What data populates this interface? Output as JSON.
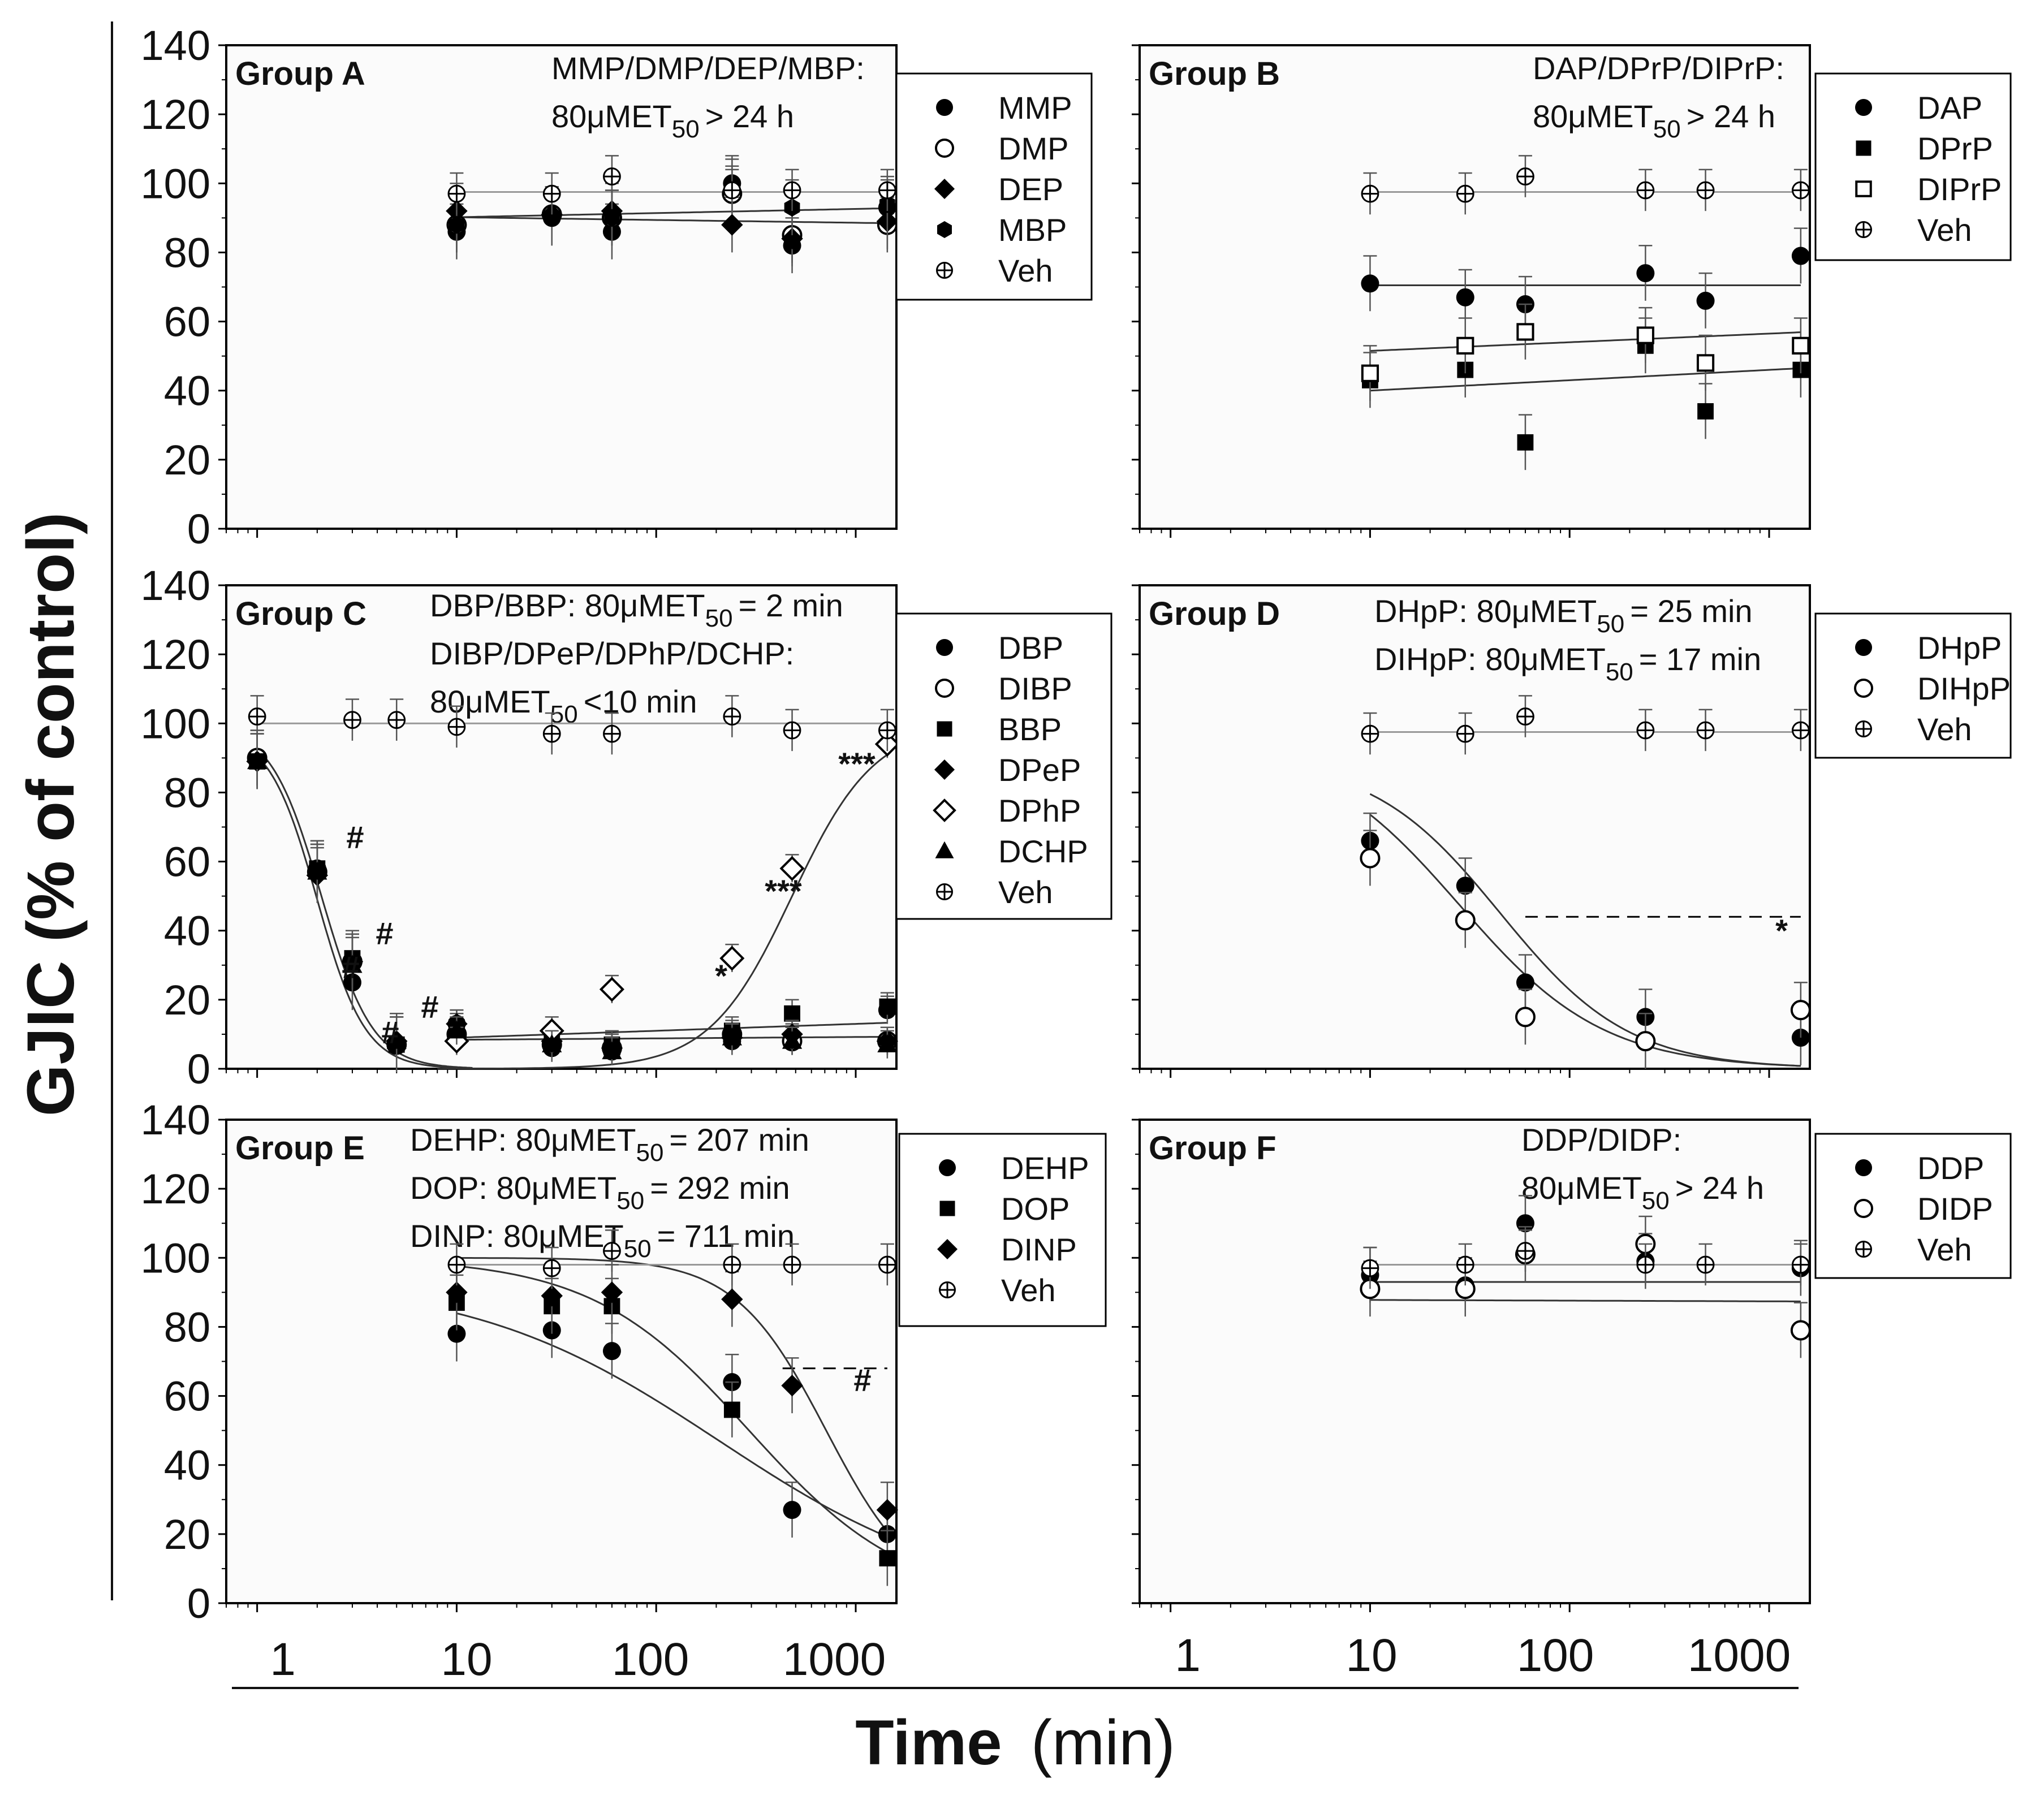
{
  "figure": {
    "ylabel": "GJIC (% of control)",
    "xlabel_bold": "Time",
    "xlabel_unit": "(min)",
    "x_ticks": [
      "1",
      "10",
      "100",
      "1000"
    ],
    "y_ticks": [
      "0",
      "20",
      "40",
      "60",
      "80",
      "100",
      "120",
      "140"
    ],
    "et50_symbol": "80μMET",
    "et50_sub": "50"
  },
  "chart_data": [
    {
      "id": "A",
      "type": "scatter",
      "title": "Group A",
      "xscale": "log",
      "xlim": [
        0.7,
        1600
      ],
      "ylim": [
        0,
        140
      ],
      "legend": "top-right",
      "annotations": [
        {
          "prefix": "MMP/DMP/DEP/MBP:",
          "suffix": "> 24 h"
        }
      ],
      "series": [
        {
          "name": "MMP",
          "marker": "circle-filled",
          "x": [
            10,
            30,
            60,
            240,
            480,
            1440
          ],
          "y": [
            86,
            90,
            86,
            100,
            82,
            93
          ]
        },
        {
          "name": "DMP",
          "marker": "circle-open",
          "x": [
            10,
            30,
            60,
            240,
            480,
            1440
          ],
          "y": [
            88,
            91,
            90,
            97,
            85,
            88
          ]
        },
        {
          "name": "DEP",
          "marker": "diamond-filled",
          "x": [
            10,
            30,
            60,
            240,
            480,
            1440
          ],
          "y": [
            92,
            91,
            92,
            88,
            84,
            89
          ]
        },
        {
          "name": "MBP",
          "marker": "hexagon-filled",
          "x": [
            10,
            30,
            60,
            240,
            480,
            1440
          ],
          "y": [
            88,
            90,
            90,
            99,
            93,
            94
          ]
        },
        {
          "name": "Veh",
          "marker": "crossed-circle",
          "x": [
            10,
            30,
            60,
            240,
            480,
            1440
          ],
          "y": [
            97,
            97,
            102,
            98,
            98,
            98
          ]
        }
      ]
    },
    {
      "id": "B",
      "type": "scatter",
      "title": "Group B",
      "xscale": "log",
      "xlim": [
        0.7,
        1600
      ],
      "ylim": [
        0,
        140
      ],
      "legend": "top-right",
      "annotations": [
        {
          "prefix": "DAP/DPrP/DIPrP:",
          "suffix": "> 24 h"
        }
      ],
      "series": [
        {
          "name": "DAP",
          "marker": "circle-filled",
          "x": [
            10,
            30,
            60,
            240,
            480,
            1440
          ],
          "y": [
            71,
            67,
            65,
            74,
            66,
            79
          ]
        },
        {
          "name": "DPrP",
          "marker": "square-filled",
          "x": [
            10,
            30,
            60,
            240,
            480,
            1440
          ],
          "y": [
            43,
            46,
            25,
            53,
            34,
            46
          ]
        },
        {
          "name": "DIPrP",
          "marker": "square-open",
          "x": [
            10,
            30,
            60,
            240,
            480,
            1440
          ],
          "y": [
            45,
            53,
            57,
            56,
            48,
            53
          ]
        },
        {
          "name": "Veh",
          "marker": "crossed-circle",
          "x": [
            10,
            30,
            60,
            240,
            480,
            1440
          ],
          "y": [
            97,
            97,
            102,
            98,
            98,
            98
          ]
        }
      ]
    },
    {
      "id": "C",
      "type": "scatter",
      "title": "Group C",
      "xscale": "log",
      "xlim": [
        0.7,
        1600
      ],
      "ylim": [
        0,
        140
      ],
      "legend": "top-right",
      "annotations": [
        {
          "prefix": "DBP/BBP:",
          "suffix": "= 2 min"
        },
        {
          "prefix": "DIBP/DPeP/DPhP/DCHP:",
          "suffix": ""
        },
        {
          "prefix": "",
          "suffix": "<10 min"
        }
      ],
      "significance": [
        "#",
        "#",
        "#",
        "#",
        "#",
        "*",
        "***",
        "***"
      ],
      "series": [
        {
          "name": "DBP",
          "marker": "circle-filled",
          "x": [
            1,
            2,
            3,
            5,
            10,
            30,
            60,
            240,
            480,
            1440
          ],
          "y": [
            90,
            58,
            25,
            7,
            13,
            6,
            5,
            8,
            9,
            17
          ]
        },
        {
          "name": "DIBP",
          "marker": "circle-open",
          "x": [
            1,
            2,
            3,
            5,
            10,
            30,
            60,
            240,
            480,
            1440
          ],
          "y": [
            90,
            57,
            31,
            7,
            10,
            7,
            6,
            10,
            8,
            8
          ]
        },
        {
          "name": "BBP",
          "marker": "square-filled",
          "x": [
            1,
            2,
            3,
            5,
            10,
            30,
            60,
            240,
            480,
            1440
          ],
          "y": [
            89,
            58,
            32,
            7,
            12,
            8,
            7,
            11,
            16,
            18
          ]
        },
        {
          "name": "DPeP",
          "marker": "diamond-filled",
          "x": [
            1,
            2,
            3,
            5,
            10,
            30,
            60,
            240,
            480,
            1440
          ],
          "y": [
            89,
            56,
            31,
            8,
            13,
            8,
            6,
            9,
            10,
            8
          ]
        },
        {
          "name": "DPhP",
          "marker": "diamond-open",
          "x": [
            10,
            30,
            60,
            240,
            480,
            1440
          ],
          "y": [
            8,
            11,
            23,
            32,
            58,
            94
          ]
        },
        {
          "name": "DCHP",
          "marker": "triangle-filled",
          "x": [
            1,
            2,
            3,
            5,
            10,
            30,
            60,
            240,
            480,
            1440
          ],
          "y": [
            89,
            57,
            30,
            8,
            11,
            7,
            5,
            9,
            8,
            7
          ]
        },
        {
          "name": "Veh",
          "marker": "crossed-circle",
          "x": [
            1,
            3,
            5,
            10,
            30,
            60,
            240,
            480,
            1440
          ],
          "y": [
            102,
            101,
            101,
            99,
            97,
            97,
            102,
            98,
            98
          ]
        }
      ]
    },
    {
      "id": "D",
      "type": "scatter",
      "title": "Group D",
      "xscale": "log",
      "xlim": [
        0.7,
        1600
      ],
      "ylim": [
        0,
        140
      ],
      "legend": "top-right",
      "annotations": [
        {
          "prefix": "DHpP:",
          "suffix": "= 25 min"
        },
        {
          "prefix": "DIHpP:",
          "suffix": "= 17 min"
        }
      ],
      "significance": [
        "*"
      ],
      "series": [
        {
          "name": "DHpP",
          "marker": "circle-filled",
          "x": [
            10,
            30,
            60,
            240,
            1440
          ],
          "y": [
            66,
            53,
            25,
            15,
            9
          ]
        },
        {
          "name": "DIHpP",
          "marker": "circle-open",
          "x": [
            10,
            30,
            60,
            240,
            1440
          ],
          "y": [
            61,
            43,
            15,
            8,
            17
          ]
        },
        {
          "name": "Veh",
          "marker": "crossed-circle",
          "x": [
            10,
            30,
            60,
            240,
            480,
            1440
          ],
          "y": [
            97,
            97,
            102,
            98,
            98,
            98
          ]
        }
      ]
    },
    {
      "id": "E",
      "type": "scatter",
      "title": "Group E",
      "xscale": "log",
      "xlim": [
        0.7,
        1600
      ],
      "ylim": [
        0,
        140
      ],
      "legend": "top-right",
      "annotations": [
        {
          "prefix": "DEHP:",
          "suffix": "= 207 min"
        },
        {
          "prefix": "DOP:",
          "suffix": "= 292 min"
        },
        {
          "prefix": "DINP:",
          "suffix": "= 711 min"
        }
      ],
      "significance": [
        "#"
      ],
      "series": [
        {
          "name": "DEHP",
          "marker": "circle-filled",
          "x": [
            10,
            30,
            60,
            240,
            480,
            1440
          ],
          "y": [
            78,
            79,
            73,
            64,
            27,
            20
          ]
        },
        {
          "name": "DOP",
          "marker": "square-filled",
          "x": [
            10,
            30,
            60,
            240,
            1440
          ],
          "y": [
            87,
            86,
            86,
            56,
            13
          ]
        },
        {
          "name": "DINP",
          "marker": "diamond-filled",
          "x": [
            10,
            30,
            60,
            240,
            480,
            1440
          ],
          "y": [
            90,
            89,
            90,
            88,
            63,
            27
          ]
        },
        {
          "name": "Veh",
          "marker": "crossed-circle",
          "x": [
            10,
            30,
            60,
            240,
            480,
            1440
          ],
          "y": [
            98,
            97,
            102,
            98,
            98,
            98
          ]
        }
      ]
    },
    {
      "id": "F",
      "type": "scatter",
      "title": "Group F",
      "xscale": "log",
      "xlim": [
        0.7,
        1600
      ],
      "ylim": [
        0,
        140
      ],
      "legend": "top-right",
      "annotations": [
        {
          "prefix": "DDP/DIDP:",
          "suffix": "> 24 h"
        }
      ],
      "series": [
        {
          "name": "DDP",
          "marker": "circle-filled",
          "x": [
            10,
            30,
            60,
            240,
            1440
          ],
          "y": [
            95,
            92,
            110,
            99,
            97
          ]
        },
        {
          "name": "DIDP",
          "marker": "circle-open",
          "x": [
            10,
            30,
            60,
            240,
            1440
          ],
          "y": [
            91,
            91,
            101,
            104,
            79
          ]
        },
        {
          "name": "Veh",
          "marker": "crossed-circle",
          "x": [
            10,
            30,
            60,
            240,
            480,
            1440
          ],
          "y": [
            97,
            98,
            102,
            98,
            98,
            98
          ]
        }
      ]
    }
  ]
}
